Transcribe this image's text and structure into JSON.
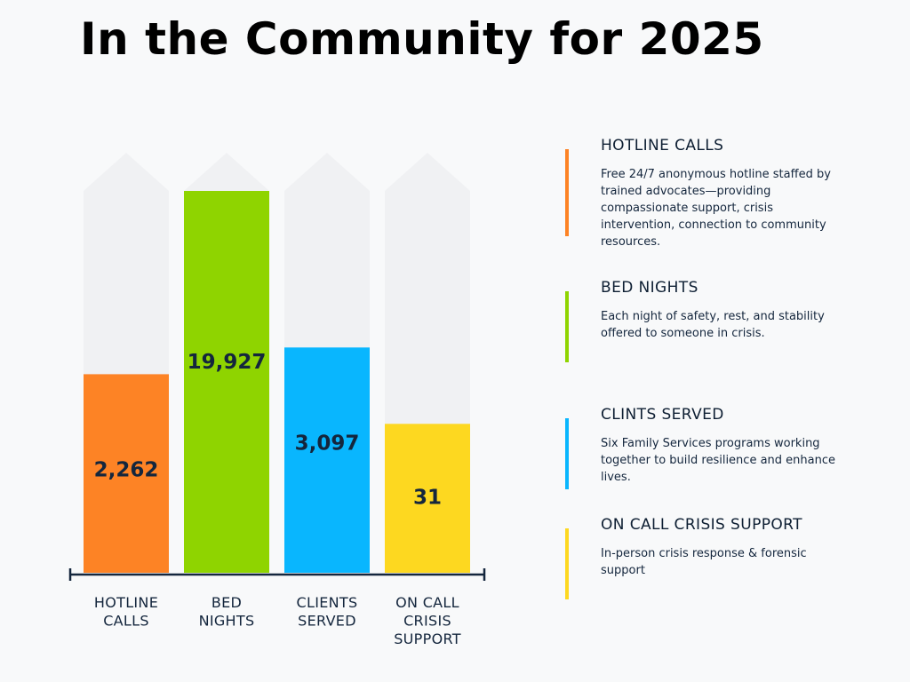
{
  "title": "In the Community for 2025",
  "chart_data": {
    "type": "bar",
    "title": "In the Community for 2025",
    "categories": [
      "HOTLINE CALLS",
      "BED NIGHTS",
      "CLIENTS SERVED",
      "ON CALL CRISIS SUPPORT"
    ],
    "category_lines": [
      [
        "HOTLINE",
        "CALLS"
      ],
      [
        "BED",
        "NIGHTS"
      ],
      [
        "CLIENTS",
        "SERVED"
      ],
      [
        "ON CALL",
        "CRISIS",
        "SUPPORT"
      ]
    ],
    "values": [
      2262,
      19927,
      3097,
      31
    ],
    "value_labels": [
      "2,262",
      "19,927",
      "3,097",
      "31"
    ],
    "fill_fraction": [
      0.52,
      1.0,
      0.59,
      0.39
    ],
    "colors": [
      "#fd8325",
      "#8fd400",
      "#09b6fe",
      "#fdd820"
    ],
    "track_color": "#f0f1f3",
    "axis_color": "#14263d",
    "xlabel": "",
    "ylabel": ""
  },
  "legend": [
    {
      "title": "HOTLINE CALLS",
      "color": "#fd8325",
      "description": "Free 24/7 anonymous hotline staffed by trained advocates—providing compassionate support, crisis intervention, connection to community resources."
    },
    {
      "title": "BED NIGHTS",
      "color": "#8fd400",
      "description": "Each night of safety, rest, and stability offered to someone in crisis."
    },
    {
      "title": "CLINTS SERVED",
      "color": "#09b6fe",
      "description": "Six Family Services programs working together to build resilience and enhance lives."
    },
    {
      "title": "ON CALL CRISIS SUPPORT",
      "color": "#fdd820",
      "description": "In-person crisis response & forensic support"
    }
  ]
}
